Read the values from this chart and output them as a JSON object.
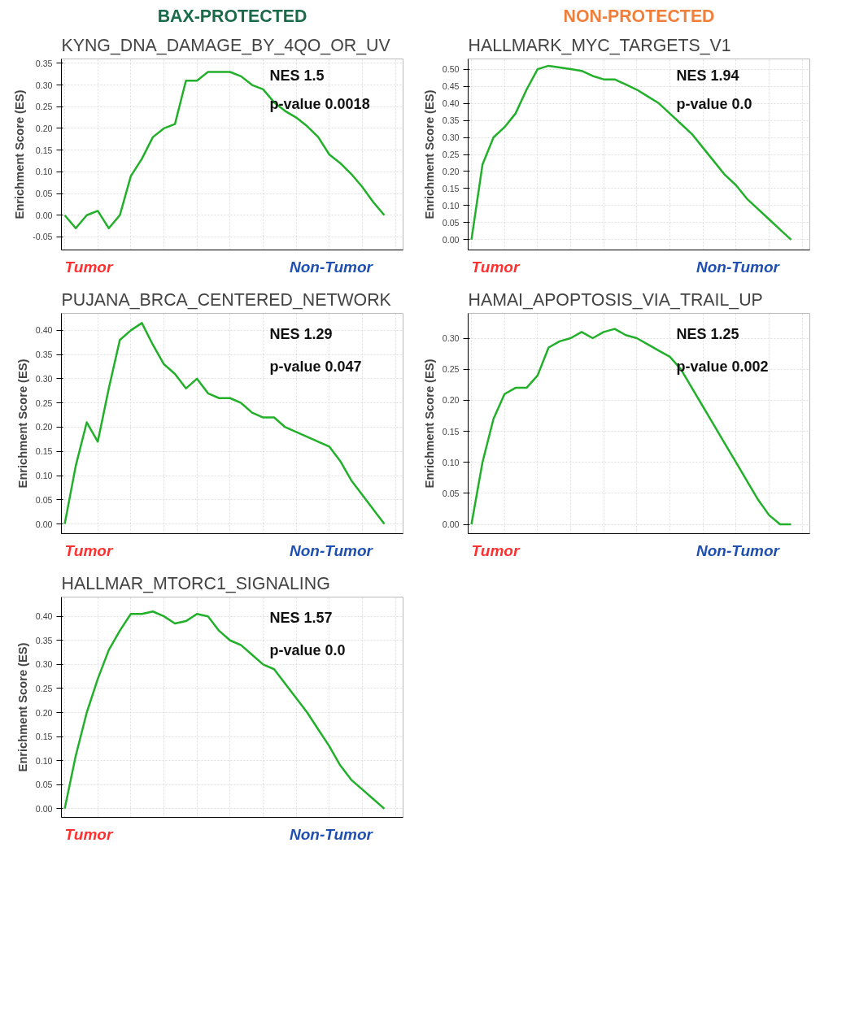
{
  "chart_data": [
    {
      "type": "line",
      "subtitle": "BAX-PROTECTED",
      "title": "KYNG_DNA_DAMAGE_BY_4QO_OR_UV",
      "ylabel": "Enrichment Score (ES)",
      "categories": [
        null,
        null,
        null,
        null,
        null,
        null,
        null,
        null,
        null,
        null,
        null,
        null,
        null,
        null,
        null,
        null,
        null,
        null,
        null,
        null,
        null,
        null,
        null,
        null,
        null,
        null,
        null,
        null,
        null,
        null
      ],
      "series": [
        {
          "color": "#22b02a",
          "values": [
            0.0,
            -0.03,
            0.0,
            0.01,
            -0.03,
            0.0,
            0.09,
            0.13,
            0.18,
            0.2,
            0.21,
            0.31,
            0.31,
            0.33,
            0.33,
            0.33,
            0.32,
            0.3,
            0.29,
            0.26,
            0.24,
            0.225,
            0.205,
            0.18,
            0.14,
            0.12,
            0.095,
            0.065,
            0.03,
            0.0
          ]
        }
      ],
      "ylim": [
        -0.08,
        0.36
      ],
      "yticks": [
        {
          "value": -0.05,
          "label": "-0.05"
        },
        {
          "value": 0,
          "label": "0.00"
        },
        {
          "value": 0.05,
          "label": "0.05"
        },
        {
          "value": 0.1,
          "label": "0.10"
        },
        {
          "value": 0.15,
          "label": "0.15"
        },
        {
          "value": 0.2,
          "label": "0.20"
        },
        {
          "value": 0.25,
          "label": "0.25"
        },
        {
          "value": 0.3,
          "label": "0.30"
        },
        {
          "value": 0.35,
          "label": "0.35"
        }
      ],
      "grid": true,
      "tick_labels": "y",
      "annotations": [
        "NES 1.5",
        "p-value 0.0018",
        "Tumor",
        "Non-Tumor"
      ]
    },
    {
      "type": "line",
      "subtitle": "NON-PROTECTED",
      "title": "HALLMARK_MYC_TARGETS_V1",
      "ylabel": "Enrichment Score (ES)",
      "categories": [
        null,
        null,
        null,
        null,
        null,
        null,
        null,
        null,
        null,
        null,
        null,
        null,
        null,
        null,
        null,
        null,
        null,
        null,
        null,
        null,
        null,
        null,
        null,
        null,
        null,
        null,
        null,
        null,
        null,
        null
      ],
      "series": [
        {
          "color": "#22b02a",
          "values": [
            0.0,
            0.22,
            0.3,
            0.33,
            0.37,
            0.44,
            0.5,
            0.51,
            0.505,
            0.5,
            0.495,
            0.48,
            0.47,
            0.47,
            0.455,
            0.44,
            0.42,
            0.4,
            0.37,
            0.34,
            0.31,
            0.27,
            0.23,
            0.19,
            0.16,
            0.12,
            0.09,
            0.06,
            0.03,
            0.0
          ]
        }
      ],
      "ylim": [
        -0.03,
        0.53
      ],
      "yticks": [
        {
          "value": 0,
          "label": "0.00"
        },
        {
          "value": 0.05,
          "label": "0.05"
        },
        {
          "value": 0.1,
          "label": "0.10"
        },
        {
          "value": 0.15,
          "label": "0.15"
        },
        {
          "value": 0.2,
          "label": "0.20"
        },
        {
          "value": 0.25,
          "label": "0.25"
        },
        {
          "value": 0.3,
          "label": "0.30"
        },
        {
          "value": 0.35,
          "label": "0.35"
        },
        {
          "value": 0.4,
          "label": "0.40"
        },
        {
          "value": 0.45,
          "label": "0.45"
        },
        {
          "value": 0.5,
          "label": "0.50"
        }
      ],
      "grid": true,
      "tick_labels": "y",
      "annotations": [
        "NES 1.94",
        "p-value 0.0",
        "Tumor",
        "Non-Tumor"
      ]
    },
    {
      "type": "line",
      "title": "PUJANA_BRCA_CENTERED_NETWORK",
      "ylabel": "Enrichment Score (ES)",
      "categories": [
        null,
        null,
        null,
        null,
        null,
        null,
        null,
        null,
        null,
        null,
        null,
        null,
        null,
        null,
        null,
        null,
        null,
        null,
        null,
        null,
        null,
        null,
        null,
        null,
        null,
        null,
        null,
        null,
        null,
        null
      ],
      "series": [
        {
          "color": "#22b02a",
          "values": [
            0.0,
            0.12,
            0.21,
            0.17,
            0.28,
            0.38,
            0.4,
            0.415,
            0.37,
            0.33,
            0.31,
            0.28,
            0.3,
            0.27,
            0.26,
            0.26,
            0.25,
            0.23,
            0.22,
            0.22,
            0.2,
            0.19,
            0.18,
            0.17,
            0.16,
            0.13,
            0.09,
            0.06,
            0.03,
            0.0
          ]
        }
      ],
      "ylim": [
        -0.02,
        0.435
      ],
      "yticks": [
        {
          "value": 0,
          "label": "0.00"
        },
        {
          "value": 0.05,
          "label": "0.05"
        },
        {
          "value": 0.1,
          "label": "0.10"
        },
        {
          "value": 0.15,
          "label": "0.15"
        },
        {
          "value": 0.2,
          "label": "0.20"
        },
        {
          "value": 0.25,
          "label": "0.25"
        },
        {
          "value": 0.3,
          "label": "0.30"
        },
        {
          "value": 0.35,
          "label": "0.35"
        },
        {
          "value": 0.4,
          "label": "0.40"
        }
      ],
      "grid": true,
      "tick_labels": "y",
      "annotations": [
        "NES 1.29",
        "p-value 0.047",
        "Tumor",
        "Non-Tumor"
      ]
    },
    {
      "type": "line",
      "title": "HAMAI_APOPTOSIS_VIA_TRAIL_UP",
      "ylabel": "Enrichment Score (ES)",
      "categories": [
        null,
        null,
        null,
        null,
        null,
        null,
        null,
        null,
        null,
        null,
        null,
        null,
        null,
        null,
        null,
        null,
        null,
        null,
        null,
        null,
        null,
        null,
        null,
        null,
        null,
        null,
        null,
        null,
        null,
        null
      ],
      "series": [
        {
          "color": "#22b02a",
          "values": [
            0.0,
            0.1,
            0.17,
            0.21,
            0.22,
            0.22,
            0.24,
            0.285,
            0.295,
            0.3,
            0.31,
            0.3,
            0.31,
            0.315,
            0.305,
            0.3,
            0.29,
            0.28,
            0.27,
            0.25,
            0.22,
            0.19,
            0.16,
            0.13,
            0.1,
            0.07,
            0.04,
            0.015,
            0.0,
            0.0
          ]
        }
      ],
      "ylim": [
        -0.015,
        0.34
      ],
      "yticks": [
        {
          "value": 0,
          "label": "0.00"
        },
        {
          "value": 0.05,
          "label": "0.05"
        },
        {
          "value": 0.1,
          "label": "0.10"
        },
        {
          "value": 0.15,
          "label": "0.15"
        },
        {
          "value": 0.2,
          "label": "0.20"
        },
        {
          "value": 0.25,
          "label": "0.25"
        },
        {
          "value": 0.3,
          "label": "0.30"
        }
      ],
      "grid": true,
      "tick_labels": "y",
      "annotations": [
        "NES 1.25",
        "p-value 0.002",
        "Tumor",
        "Non-Tumor"
      ]
    },
    {
      "type": "line",
      "title": "HALLMAR_MTORC1_SIGNALING",
      "ylabel": "Enrichment Score (ES)",
      "categories": [
        null,
        null,
        null,
        null,
        null,
        null,
        null,
        null,
        null,
        null,
        null,
        null,
        null,
        null,
        null,
        null,
        null,
        null,
        null,
        null,
        null,
        null,
        null,
        null,
        null,
        null,
        null,
        null,
        null,
        null
      ],
      "series": [
        {
          "color": "#22b02a",
          "values": [
            0.0,
            0.11,
            0.2,
            0.27,
            0.33,
            0.37,
            0.405,
            0.405,
            0.41,
            0.4,
            0.385,
            0.39,
            0.405,
            0.4,
            0.37,
            0.35,
            0.34,
            0.32,
            0.3,
            0.29,
            0.26,
            0.23,
            0.2,
            0.165,
            0.13,
            0.09,
            0.06,
            0.04,
            0.02,
            0.0
          ]
        }
      ],
      "ylim": [
        -0.018,
        0.44
      ],
      "yticks": [
        {
          "value": 0,
          "label": "0.00"
        },
        {
          "value": 0.05,
          "label": "0.05"
        },
        {
          "value": 0.1,
          "label": "0.10"
        },
        {
          "value": 0.15,
          "label": "0.15"
        },
        {
          "value": 0.2,
          "label": "0.20"
        },
        {
          "value": 0.25,
          "label": "0.25"
        },
        {
          "value": 0.3,
          "label": "0.30"
        },
        {
          "value": 0.35,
          "label": "0.35"
        },
        {
          "value": 0.4,
          "label": "0.40"
        }
      ],
      "grid": true,
      "tick_labels": "y",
      "annotations": [
        "NES 1.57",
        "p-value 0.0",
        "Tumor",
        "Non-Tumor"
      ]
    }
  ]
}
